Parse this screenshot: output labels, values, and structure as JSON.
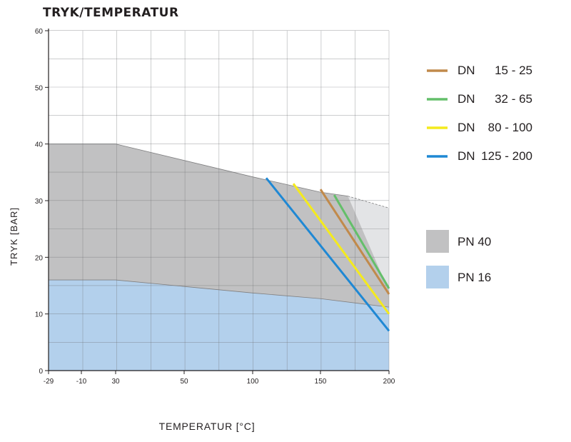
{
  "chart_data": {
    "type": "line",
    "title": "TRYK/TEMPERATUR",
    "xlabel": "TEMPERATUR [°C]",
    "ylabel": "TRYK [BAR]",
    "x_ticks": [
      {
        "label": "-29",
        "value": -29
      },
      {
        "label": "-10",
        "value": -10
      },
      {
        "label": "30",
        "value": 30
      },
      {
        "label": "50",
        "value": 50
      },
      {
        "label": "100",
        "value": 100
      },
      {
        "label": "150",
        "value": 150
      },
      {
        "label": "200",
        "value": 200
      }
    ],
    "y_ticks": [
      0,
      10,
      20,
      30,
      40,
      50,
      60
    ],
    "ylim": [
      0,
      60
    ],
    "areas": [
      {
        "name": "PN 40",
        "color": "#c1c1c2",
        "points": [
          [
            -29,
            40
          ],
          [
            30,
            40
          ],
          [
            100,
            34.2
          ],
          [
            150,
            31.5
          ],
          [
            170,
            30.8
          ]
        ]
      },
      {
        "name": "PN 40 (extended)",
        "color": "#e3e4e6",
        "points": [
          [
            170,
            30.8
          ],
          [
            200,
            28.7
          ]
        ]
      },
      {
        "name": "PN 16",
        "color": "#b3d0ec",
        "points": [
          [
            -29,
            16
          ],
          [
            30,
            16
          ],
          [
            100,
            13.7
          ],
          [
            150,
            12.7
          ],
          [
            200,
            11.2
          ]
        ]
      }
    ],
    "series": [
      {
        "name": "DN 15 - 25",
        "dn": "DN",
        "range": "15 - 25",
        "color": "#c18a4b",
        "points": [
          [
            150,
            32
          ],
          [
            200,
            13.5
          ]
        ]
      },
      {
        "name": "DN 32 - 65",
        "dn": "DN",
        "range": "32 - 65",
        "color": "#64bf6a",
        "points": [
          [
            160,
            31
          ],
          [
            200,
            14.5
          ]
        ]
      },
      {
        "name": "DN 80 - 100",
        "dn": "DN",
        "range": "80 - 100",
        "color": "#f4ea1d",
        "points": [
          [
            130,
            33
          ],
          [
            200,
            10
          ]
        ]
      },
      {
        "name": "DN 125 - 200",
        "dn": "DN",
        "range": "125 - 200",
        "color": "#1f88d4",
        "points": [
          [
            110,
            34
          ],
          [
            200,
            7
          ]
        ]
      }
    ],
    "legend_areas": [
      {
        "label": "PN 40",
        "color": "#c1c1c2"
      },
      {
        "label": "PN 16",
        "color": "#b3d0ec"
      }
    ],
    "grid": true,
    "legend_position": "right"
  }
}
